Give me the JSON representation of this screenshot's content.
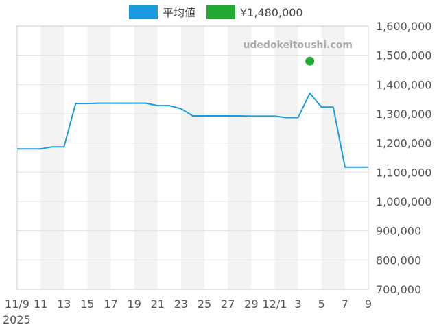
{
  "chart_data": {
    "type": "line",
    "watermark": "udedokeitoushi.com",
    "legend": [
      {
        "label": "平均値",
        "color": "#1a9be0"
      },
      {
        "label": "¥1,480,000",
        "color": "#22aa33"
      }
    ],
    "x_tick_labels": [
      "11/9",
      "11",
      "13",
      "15",
      "17",
      "19",
      "21",
      "23",
      "25",
      "27",
      "29",
      "12/1",
      "3",
      "5",
      "7",
      "9"
    ],
    "x_year_label": "2025",
    "y_tick_labels": [
      "1,600,000",
      "1,500,000",
      "1,400,000",
      "1,300,000",
      "1,200,000",
      "1,100,000",
      "1,000,000",
      "900,000",
      "800,000",
      "700,000"
    ],
    "ylim": [
      700000,
      1600000
    ],
    "x_range": [
      "2025-11-09",
      "2025-12-09"
    ],
    "series": [
      {
        "name": "平均値",
        "color": "#1a9be0",
        "points": [
          [
            "2025-11-09",
            1180000
          ],
          [
            "2025-11-10",
            1180000
          ],
          [
            "2025-11-11",
            1180000
          ],
          [
            "2025-11-12",
            1187000
          ],
          [
            "2025-11-13",
            1187000
          ],
          [
            "2025-11-14",
            1335000
          ],
          [
            "2025-11-15",
            1335000
          ],
          [
            "2025-11-16",
            1336000
          ],
          [
            "2025-11-17",
            1336000
          ],
          [
            "2025-11-18",
            1336000
          ],
          [
            "2025-11-19",
            1336000
          ],
          [
            "2025-11-20",
            1336000
          ],
          [
            "2025-11-21",
            1328000
          ],
          [
            "2025-11-22",
            1328000
          ],
          [
            "2025-11-23",
            1317000
          ],
          [
            "2025-11-24",
            1293000
          ],
          [
            "2025-11-25",
            1293000
          ],
          [
            "2025-11-26",
            1293000
          ],
          [
            "2025-11-27",
            1293000
          ],
          [
            "2025-11-28",
            1293000
          ],
          [
            "2025-11-29",
            1292000
          ],
          [
            "2025-11-30",
            1292000
          ],
          [
            "2025-12-01",
            1292000
          ],
          [
            "2025-12-02",
            1287000
          ],
          [
            "2025-12-03",
            1287000
          ],
          [
            "2025-12-04",
            1370000
          ],
          [
            "2025-12-05",
            1323000
          ],
          [
            "2025-12-06",
            1323000
          ],
          [
            "2025-12-07",
            1118000
          ],
          [
            "2025-12-08",
            1118000
          ],
          [
            "2025-12-09",
            1118000
          ]
        ]
      },
      {
        "name": "¥1,480,000",
        "color": "#22aa33",
        "points": [
          [
            "2025-12-04",
            1480000
          ]
        ]
      }
    ]
  }
}
